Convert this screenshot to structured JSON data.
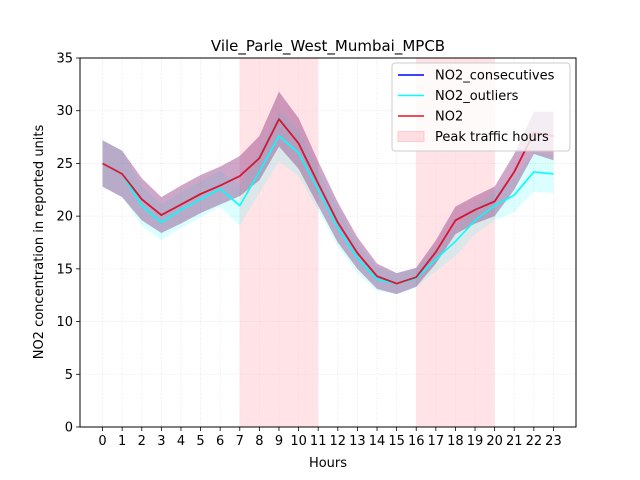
{
  "chart_data": {
    "type": "line",
    "title": "Vile_Parle_West_Mumbai_MPCB",
    "xlabel": "Hours",
    "ylabel": "NO2 concentration in reported units",
    "x": [
      0,
      1,
      2,
      3,
      4,
      5,
      6,
      7,
      8,
      9,
      10,
      11,
      12,
      13,
      14,
      15,
      16,
      17,
      18,
      19,
      20,
      21,
      22,
      23
    ],
    "xlim": [
      -1.15,
      24.15
    ],
    "ylim": [
      0,
      35
    ],
    "yticks": [
      0,
      5,
      10,
      15,
      20,
      25,
      30,
      35
    ],
    "grid": true,
    "legend_position": "top-right",
    "shaded_regions": [
      {
        "name": "Peak traffic hours",
        "x_start": 7,
        "x_end": 11,
        "color": "#ffc0c8"
      },
      {
        "name": "Peak traffic hours",
        "x_start": 16,
        "x_end": 20,
        "color": "#ffc0c8"
      }
    ],
    "series": [
      {
        "name": "NO2_consecutives",
        "color": "#0000ff",
        "values": [
          25.0,
          24.0,
          21.6,
          20.1,
          21.1,
          22.1,
          22.9,
          23.8,
          25.5,
          29.2,
          26.9,
          23.1,
          19.4,
          16.5,
          14.3,
          13.6,
          14.2,
          16.6,
          19.6,
          20.6,
          21.4,
          24.2,
          27.9,
          27.6
        ],
        "band_lower": [
          22.8,
          21.8,
          19.6,
          18.4,
          19.3,
          20.3,
          21.1,
          21.9,
          23.4,
          26.6,
          24.5,
          21.0,
          17.5,
          15.0,
          13.1,
          12.6,
          13.3,
          15.5,
          18.3,
          19.3,
          20.0,
          22.5,
          25.9,
          25.3
        ],
        "band_upper": [
          27.2,
          26.2,
          23.6,
          21.8,
          22.9,
          23.9,
          24.7,
          25.7,
          27.6,
          31.8,
          29.3,
          25.2,
          21.3,
          18.0,
          15.5,
          14.6,
          15.1,
          17.7,
          20.9,
          21.9,
          22.8,
          25.9,
          29.9,
          29.9
        ]
      },
      {
        "name": "NO2_outliers",
        "color": "#00ffff",
        "values": [
          25.0,
          24.0,
          21.0,
          19.4,
          20.6,
          21.6,
          22.6,
          21.0,
          24.2,
          27.6,
          26.0,
          22.5,
          18.9,
          16.0,
          14.0,
          13.6,
          14.1,
          15.9,
          17.6,
          19.6,
          21.0,
          22.0,
          24.2,
          24.0
        ],
        "band_lower": [
          22.8,
          21.8,
          19.1,
          17.7,
          18.9,
          19.9,
          20.9,
          19.1,
          22.2,
          25.2,
          23.8,
          20.6,
          17.1,
          14.6,
          12.9,
          12.6,
          13.2,
          14.8,
          16.2,
          18.3,
          19.6,
          20.4,
          22.3,
          22.2
        ],
        "band_upper": [
          27.2,
          26.2,
          22.9,
          21.1,
          22.3,
          23.3,
          24.3,
          22.9,
          26.2,
          30.0,
          28.2,
          24.4,
          20.7,
          17.4,
          15.1,
          14.6,
          15.0,
          17.0,
          19.0,
          20.9,
          22.4,
          23.6,
          26.1,
          25.8
        ]
      },
      {
        "name": "NO2",
        "color": "#e8141e",
        "values": [
          25.0,
          24.0,
          21.6,
          20.1,
          21.1,
          22.1,
          22.9,
          23.8,
          25.5,
          29.2,
          26.9,
          23.1,
          19.4,
          16.5,
          14.3,
          13.6,
          14.2,
          16.6,
          19.6,
          20.6,
          21.4,
          24.2,
          27.9,
          27.6
        ],
        "band_lower": [
          22.8,
          21.8,
          19.6,
          18.4,
          19.3,
          20.3,
          21.1,
          21.9,
          23.4,
          26.6,
          24.5,
          21.0,
          17.5,
          15.0,
          13.1,
          12.6,
          13.3,
          15.5,
          18.3,
          19.3,
          20.0,
          22.5,
          25.9,
          25.3
        ],
        "band_upper": [
          27.2,
          26.2,
          23.6,
          21.8,
          22.9,
          23.9,
          24.7,
          25.7,
          27.6,
          31.8,
          29.3,
          25.2,
          21.3,
          18.0,
          15.5,
          14.6,
          15.1,
          17.7,
          20.9,
          21.9,
          22.8,
          25.9,
          29.9,
          29.9
        ]
      }
    ],
    "legend": [
      {
        "label": "NO2_consecutives",
        "kind": "line",
        "color": "#0000ff"
      },
      {
        "label": "NO2_outliers",
        "kind": "line",
        "color": "#00ffff"
      },
      {
        "label": "NO2",
        "kind": "line",
        "color": "#e8141e"
      },
      {
        "label": "Peak traffic hours",
        "kind": "patch",
        "color": "#ffc0c8"
      }
    ]
  }
}
